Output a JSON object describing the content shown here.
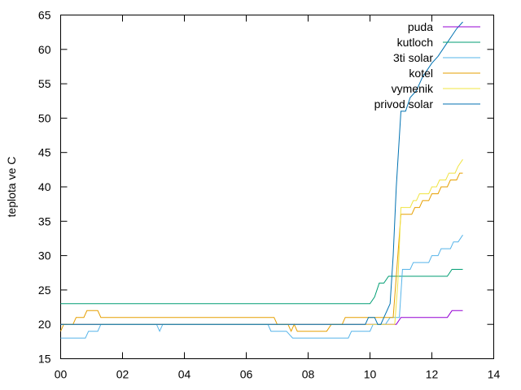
{
  "chart_data": {
    "type": "line",
    "title": "",
    "xlabel": "",
    "ylabel": "teplota ve C",
    "xlim": [
      0,
      14
    ],
    "ylim": [
      15,
      65
    ],
    "x_ticks": [
      0,
      2,
      4,
      6,
      8,
      10,
      12,
      14
    ],
    "x_tick_labels": [
      "00",
      "02",
      "04",
      "06",
      "08",
      "10",
      "12",
      "14"
    ],
    "y_ticks": [
      15,
      20,
      25,
      30,
      35,
      40,
      45,
      50,
      55,
      60,
      65
    ],
    "y_tick_labels": [
      "15",
      "20",
      "25",
      "30",
      "35",
      "40",
      "45",
      "50",
      "55",
      "60",
      "65"
    ],
    "grid": false,
    "legend_position": "top-right",
    "series": [
      {
        "name": "puda",
        "color": "#9400d3",
        "points": [
          [
            0,
            20
          ],
          [
            10.85,
            20
          ],
          [
            11.0,
            21
          ],
          [
            12.5,
            21
          ],
          [
            12.65,
            22
          ],
          [
            13.0,
            22
          ]
        ]
      },
      {
        "name": "kutloch",
        "color": "#009e73",
        "points": [
          [
            0,
            23
          ],
          [
            10.0,
            23
          ],
          [
            10.15,
            24
          ],
          [
            10.3,
            26
          ],
          [
            10.45,
            26
          ],
          [
            10.6,
            27
          ],
          [
            12.5,
            27
          ],
          [
            12.65,
            28
          ],
          [
            13.0,
            28
          ]
        ]
      },
      {
        "name": "3ti solar",
        "color": "#56b4e9",
        "points": [
          [
            0,
            18
          ],
          [
            0.8,
            18
          ],
          [
            0.9,
            19
          ],
          [
            1.2,
            19
          ],
          [
            1.3,
            20
          ],
          [
            3.1,
            20
          ],
          [
            3.2,
            19
          ],
          [
            3.3,
            20
          ],
          [
            6.7,
            20
          ],
          [
            6.8,
            19
          ],
          [
            7.3,
            19
          ],
          [
            7.5,
            18
          ],
          [
            9.3,
            18
          ],
          [
            9.4,
            19
          ],
          [
            10.0,
            19
          ],
          [
            10.1,
            20
          ],
          [
            10.5,
            20
          ],
          [
            10.65,
            21
          ],
          [
            10.95,
            21
          ],
          [
            11.05,
            28
          ],
          [
            11.3,
            28
          ],
          [
            11.4,
            29
          ],
          [
            11.9,
            29
          ],
          [
            12.0,
            30
          ],
          [
            12.2,
            30
          ],
          [
            12.3,
            31
          ],
          [
            12.6,
            31
          ],
          [
            12.7,
            32
          ],
          [
            12.85,
            32
          ],
          [
            13.0,
            33
          ]
        ]
      },
      {
        "name": "kotel",
        "color": "#e69f00",
        "points": [
          [
            0,
            19
          ],
          [
            0.1,
            20
          ],
          [
            0.4,
            20
          ],
          [
            0.5,
            21
          ],
          [
            0.75,
            21
          ],
          [
            0.85,
            22
          ],
          [
            1.2,
            22
          ],
          [
            1.3,
            21
          ],
          [
            6.9,
            21
          ],
          [
            7.0,
            20
          ],
          [
            7.35,
            20
          ],
          [
            7.45,
            19
          ],
          [
            7.55,
            20
          ],
          [
            7.65,
            19
          ],
          [
            8.6,
            19
          ],
          [
            8.75,
            20
          ],
          [
            9.1,
            20
          ],
          [
            9.2,
            21
          ],
          [
            10.75,
            21
          ],
          [
            10.85,
            27
          ],
          [
            10.95,
            33
          ],
          [
            11.0,
            36
          ],
          [
            11.35,
            36
          ],
          [
            11.45,
            37
          ],
          [
            11.6,
            37
          ],
          [
            11.7,
            38
          ],
          [
            11.9,
            38
          ],
          [
            12.0,
            39
          ],
          [
            12.2,
            39
          ],
          [
            12.3,
            40
          ],
          [
            12.5,
            40
          ],
          [
            12.6,
            41
          ],
          [
            12.8,
            41
          ],
          [
            12.9,
            42
          ],
          [
            13.0,
            42
          ]
        ]
      },
      {
        "name": "vymenik",
        "color": "#f0e442",
        "points": [
          [
            0,
            20
          ],
          [
            10.8,
            20
          ],
          [
            10.9,
            26
          ],
          [
            11.0,
            37
          ],
          [
            11.3,
            37
          ],
          [
            11.4,
            38
          ],
          [
            11.5,
            38
          ],
          [
            11.6,
            39
          ],
          [
            11.9,
            39
          ],
          [
            12.0,
            40
          ],
          [
            12.15,
            40
          ],
          [
            12.25,
            41
          ],
          [
            12.45,
            41
          ],
          [
            12.55,
            42
          ],
          [
            12.75,
            42
          ],
          [
            12.85,
            43
          ],
          [
            13.0,
            44
          ]
        ]
      },
      {
        "name": "privod solar",
        "color": "#0072b2",
        "points": [
          [
            0,
            20
          ],
          [
            9.85,
            20
          ],
          [
            9.95,
            21
          ],
          [
            10.15,
            21
          ],
          [
            10.25,
            20
          ],
          [
            10.35,
            20
          ],
          [
            10.45,
            21
          ],
          [
            10.55,
            22
          ],
          [
            10.65,
            23
          ],
          [
            10.75,
            30
          ],
          [
            10.85,
            40
          ],
          [
            11.0,
            51
          ],
          [
            11.15,
            51
          ],
          [
            11.3,
            53
          ],
          [
            11.5,
            54
          ],
          [
            11.7,
            56
          ],
          [
            11.85,
            57
          ],
          [
            12.0,
            58
          ],
          [
            12.2,
            59
          ],
          [
            12.35,
            60
          ],
          [
            12.5,
            61
          ],
          [
            12.65,
            62
          ],
          [
            12.8,
            63
          ],
          [
            13.0,
            64
          ]
        ]
      }
    ]
  }
}
